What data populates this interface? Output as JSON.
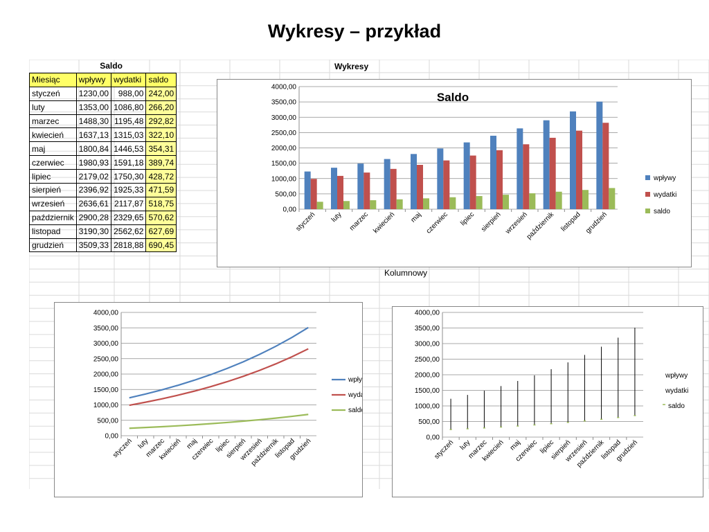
{
  "slide": {
    "title": "Wykresy – przykład"
  },
  "sheet": {
    "table_title": "Saldo",
    "section_label": "Wykresy",
    "chart_caption": "Kolumnowy",
    "headers": [
      "Miesiąc",
      "wpływy",
      "wydatki",
      "saldo"
    ],
    "rows": [
      [
        "styczeń",
        "1230,00",
        "988,00",
        "242,00"
      ],
      [
        "luty",
        "1353,00",
        "1086,80",
        "266,20"
      ],
      [
        "marzec",
        "1488,30",
        "1195,48",
        "292,82"
      ],
      [
        "kwiecień",
        "1637,13",
        "1315,03",
        "322,10"
      ],
      [
        "maj",
        "1800,84",
        "1446,53",
        "354,31"
      ],
      [
        "czerwiec",
        "1980,93",
        "1591,18",
        "389,74"
      ],
      [
        "lipiec",
        "2179,02",
        "1750,30",
        "428,72"
      ],
      [
        "sierpień",
        "2396,92",
        "1925,33",
        "471,59"
      ],
      [
        "wrzesień",
        "2636,61",
        "2117,87",
        "518,75"
      ],
      [
        "październik",
        "2900,28",
        "2329,65",
        "570,62"
      ],
      [
        "listopad",
        "3190,30",
        "2562,62",
        "627,69"
      ],
      [
        "grudzień",
        "3509,33",
        "2818,88",
        "690,45"
      ]
    ]
  },
  "colors": {
    "wplywy_bar": "#4f81bd",
    "wydatki_bar": "#c0504d",
    "saldo_bar": "#9bbb59",
    "highlight": "#ffff66"
  },
  "chart_data": [
    {
      "type": "bar",
      "title": "Saldo",
      "categories": [
        "styczeń",
        "luty",
        "marzec",
        "kwiecień",
        "maj",
        "czerwiec",
        "lipiec",
        "sierpień",
        "wrzesień",
        "październik",
        "listopad",
        "grudzień"
      ],
      "series": [
        {
          "name": "wpływy",
          "values": [
            1230.0,
            1353.0,
            1488.3,
            1637.13,
            1800.84,
            1980.93,
            2179.02,
            2396.92,
            2636.61,
            2900.28,
            3190.3,
            3509.33
          ]
        },
        {
          "name": "wydatki",
          "values": [
            988.0,
            1086.8,
            1195.48,
            1315.03,
            1446.53,
            1591.18,
            1750.3,
            1925.33,
            2117.87,
            2329.65,
            2562.62,
            2818.88
          ]
        },
        {
          "name": "saldo",
          "values": [
            242.0,
            266.2,
            292.82,
            322.1,
            354.31,
            389.74,
            428.72,
            471.59,
            518.75,
            570.62,
            627.69,
            690.45
          ]
        }
      ],
      "ylim": [
        0,
        4000
      ],
      "yticks": [
        "0,00",
        "500,00",
        "1000,00",
        "1500,00",
        "2000,00",
        "2500,00",
        "3000,00",
        "3500,00",
        "4000,00"
      ],
      "legend": "right",
      "grid": true
    },
    {
      "type": "line",
      "title": "",
      "categories": [
        "styczeń",
        "luty",
        "marzec",
        "kwiecień",
        "maj",
        "czerwiec",
        "lipiec",
        "sierpień",
        "wrzesień",
        "październik",
        "listopad",
        "grudzień"
      ],
      "series": [
        {
          "name": "wpływy",
          "values": [
            1230.0,
            1353.0,
            1488.3,
            1637.13,
            1800.84,
            1980.93,
            2179.02,
            2396.92,
            2636.61,
            2900.28,
            3190.3,
            3509.33
          ]
        },
        {
          "name": "wydatki",
          "values": [
            988.0,
            1086.8,
            1195.48,
            1315.03,
            1446.53,
            1591.18,
            1750.3,
            1925.33,
            2117.87,
            2329.65,
            2562.62,
            2818.88
          ]
        },
        {
          "name": "saldo",
          "values": [
            242.0,
            266.2,
            292.82,
            322.1,
            354.31,
            389.74,
            428.72,
            471.59,
            518.75,
            570.62,
            627.69,
            690.45
          ]
        }
      ],
      "ylim": [
        0,
        4000
      ],
      "yticks": [
        "0,00",
        "500,00",
        "1000,00",
        "1500,00",
        "2000,00",
        "2500,00",
        "3000,00",
        "3500,00",
        "4000,00"
      ],
      "legend": "right",
      "grid": true
    },
    {
      "type": "stock",
      "title": "",
      "categories": [
        "styczeń",
        "luty",
        "marzec",
        "kwiecień",
        "maj",
        "czerwiec",
        "lipiec",
        "sierpień",
        "wrzesień",
        "październik",
        "listopad",
        "grudzień"
      ],
      "series": [
        {
          "name": "wpływy",
          "values": [
            1230.0,
            1353.0,
            1488.3,
            1637.13,
            1800.84,
            1980.93,
            2179.02,
            2396.92,
            2636.61,
            2900.28,
            3190.3,
            3509.33
          ]
        },
        {
          "name": "wydatki",
          "values": [
            988.0,
            1086.8,
            1195.48,
            1315.03,
            1446.53,
            1591.18,
            1750.3,
            1925.33,
            2117.87,
            2329.65,
            2562.62,
            2818.88
          ]
        },
        {
          "name": "saldo",
          "values": [
            242.0,
            266.2,
            292.82,
            322.1,
            354.31,
            389.74,
            428.72,
            471.59,
            518.75,
            570.62,
            627.69,
            690.45
          ]
        }
      ],
      "ylim": [
        0,
        4000
      ],
      "yticks": [
        "0,00",
        "500,00",
        "1000,00",
        "1500,00",
        "2000,00",
        "2500,00",
        "3000,00",
        "3500,00",
        "4000,00"
      ],
      "legend": "right",
      "grid": true
    }
  ]
}
